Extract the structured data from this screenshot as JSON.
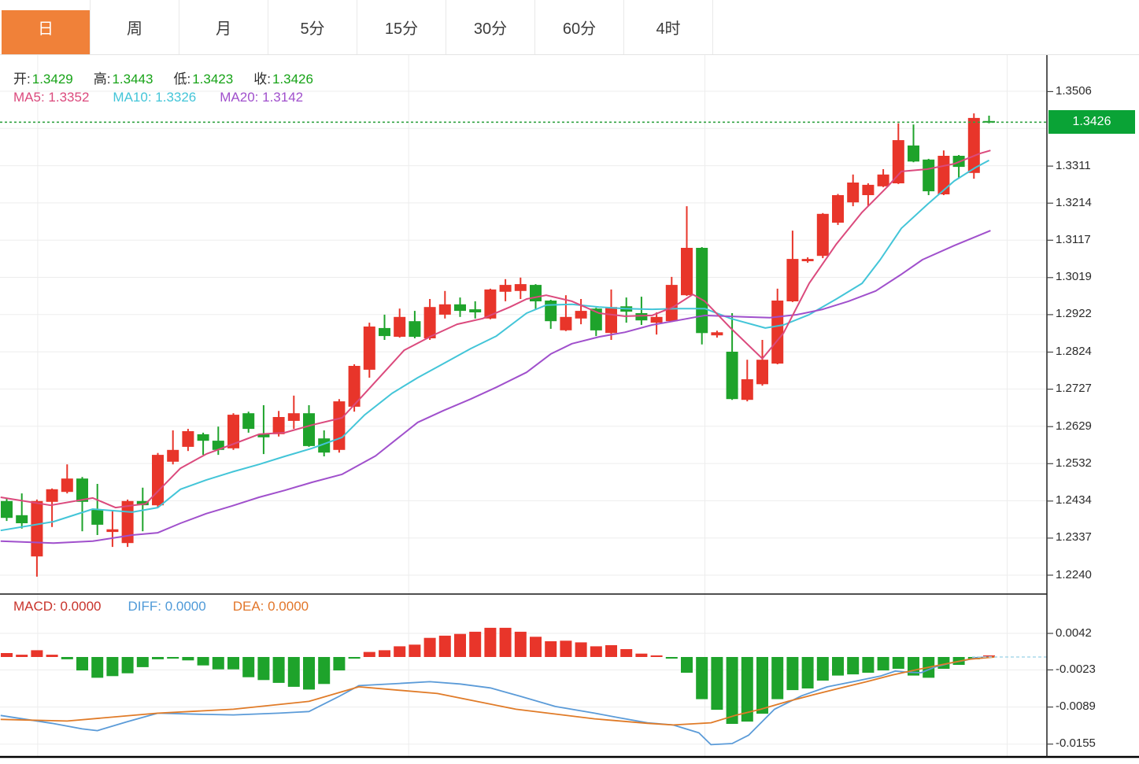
{
  "tabs": {
    "items": [
      {
        "label": "日",
        "active": true
      },
      {
        "label": "周",
        "active": false
      },
      {
        "label": "月",
        "active": false
      },
      {
        "label": "5分",
        "active": false
      },
      {
        "label": "15分",
        "active": false
      },
      {
        "label": "30分",
        "active": false
      },
      {
        "label": "60分",
        "active": false
      },
      {
        "label": "4时",
        "active": false
      }
    ],
    "active_color": "#f08139"
  },
  "quote": {
    "items": [
      {
        "label": "开:",
        "value": "1.3429"
      },
      {
        "label": "高:",
        "value": "1.3443"
      },
      {
        "label": "低:",
        "value": "1.3423"
      },
      {
        "label": "收:",
        "value": "1.3426"
      }
    ],
    "value_color": "#17a317",
    "label_color": "#2d2d2d"
  },
  "ma_legend": {
    "items": [
      {
        "label": "MA5:",
        "value": "1.3352",
        "color": "#db4a7d"
      },
      {
        "label": "MA10:",
        "value": "1.3326",
        "color": "#43c5d8"
      },
      {
        "label": "MA20:",
        "value": "1.3142",
        "color": "#a050cc"
      }
    ]
  },
  "macd_legend": {
    "items": [
      {
        "label": "MACD:",
        "value": "0.0000",
        "color": "#c8332b"
      },
      {
        "label": "DIFF:",
        "value": "0.0000",
        "color": "#4f9ad8"
      },
      {
        "label": "DEA:",
        "value": "0.0000",
        "color": "#e2762a"
      }
    ]
  },
  "price_axis": {
    "ticks": [
      "1.3506",
      "1.3311",
      "1.3214",
      "1.3117",
      "1.3019",
      "1.2922",
      "1.2824",
      "1.2727",
      "1.2629",
      "1.2532",
      "1.2434",
      "1.2337",
      "1.2240"
    ],
    "last_price_tag": {
      "value": "1.3426",
      "color": "#0aa336"
    }
  },
  "macd_axis": {
    "ticks": [
      "0.0042",
      "-0.0023",
      "-0.0089",
      "-0.0155"
    ]
  },
  "chart_data": {
    "type": "candlestick",
    "title": "Daily candlestick chart with MA5/MA10/MA20 and MACD",
    "up_color": "#e8352a",
    "down_color": "#1ea32b",
    "last_price": 1.3426,
    "last_price_line_color": "#33a343",
    "price_range": {
      "min": 1.224,
      "max": 1.3506,
      "grid_step": 0.009746
    },
    "macd_range": {
      "min": -0.0155,
      "max": 0.0042
    },
    "session_breaks_i": [
      2.05,
      26.6,
      46.2,
      66.2
    ],
    "candles": [
      [
        1.2434,
        1.2443,
        1.2382,
        1.239
      ],
      [
        1.2397,
        1.2454,
        1.2362,
        1.2376
      ],
      [
        1.2289,
        1.2438,
        1.2236,
        1.2434
      ],
      [
        1.2432,
        1.2467,
        1.2366,
        1.2465
      ],
      [
        1.2458,
        1.253,
        1.2454,
        1.2493
      ],
      [
        1.2493,
        1.2497,
        1.2355,
        1.2432
      ],
      [
        1.2413,
        1.2479,
        1.2345,
        1.2372
      ],
      [
        1.2353,
        1.2411,
        1.2314,
        1.236
      ],
      [
        1.2324,
        1.2438,
        1.2314,
        1.2434
      ],
      [
        1.2434,
        1.2469,
        1.2355,
        1.2423
      ],
      [
        1.2423,
        1.256,
        1.2417,
        1.2555
      ],
      [
        1.2537,
        1.2619,
        1.253,
        1.2568
      ],
      [
        1.2576,
        1.2623,
        1.2565,
        1.2617
      ],
      [
        1.2609,
        1.2613,
        1.2555,
        1.2592
      ],
      [
        1.2592,
        1.2629,
        1.2555,
        1.2568
      ],
      [
        1.2572,
        1.2664,
        1.2568,
        1.266
      ],
      [
        1.2664,
        1.2668,
        1.2613,
        1.2623
      ],
      [
        1.2609,
        1.2685,
        1.2557,
        1.2601
      ],
      [
        1.2609,
        1.267,
        1.2603,
        1.2654
      ],
      [
        1.2644,
        1.271,
        1.2623,
        1.2664
      ],
      [
        1.2664,
        1.2685,
        1.2576,
        1.2578
      ],
      [
        1.2598,
        1.2619,
        1.2551,
        1.2561
      ],
      [
        1.2568,
        1.2701,
        1.2561,
        1.2695
      ],
      [
        1.2681,
        1.2792,
        1.2668,
        1.2788
      ],
      [
        1.2778,
        1.2901,
        1.2757,
        1.2891
      ],
      [
        1.2887,
        1.2922,
        1.2856,
        1.2866
      ],
      [
        1.2864,
        1.2938,
        1.2862,
        1.2916
      ],
      [
        1.2905,
        1.2932,
        1.286,
        1.2864
      ],
      [
        1.286,
        1.2963,
        1.2856,
        1.2942
      ],
      [
        1.2922,
        1.2984,
        1.2912,
        1.2949
      ],
      [
        1.2949,
        1.2967,
        1.2916,
        1.2932
      ],
      [
        1.2936,
        1.2957,
        1.2912,
        1.2928
      ],
      [
        1.2912,
        1.299,
        1.291,
        1.2988
      ],
      [
        1.2982,
        1.3015,
        1.2957,
        1.3
      ],
      [
        1.2984,
        1.3019,
        1.2963,
        1.3002
      ],
      [
        1.3,
        1.3002,
        1.2936,
        1.2957
      ],
      [
        1.2959,
        1.2961,
        1.2885,
        1.2905
      ],
      [
        1.2881,
        1.2973,
        1.2879,
        1.2916
      ],
      [
        1.2912,
        1.2963,
        1.2897,
        1.2932
      ],
      [
        1.2938,
        1.294,
        1.2866,
        1.2881
      ],
      [
        1.2874,
        1.2988,
        1.2856,
        1.2942
      ],
      [
        1.2944,
        1.2967,
        1.2901,
        1.293
      ],
      [
        1.2926,
        1.2969,
        1.2895,
        1.2907
      ],
      [
        1.2901,
        1.2928,
        1.287,
        1.2916
      ],
      [
        1.2905,
        1.3021,
        1.2903,
        1.3
      ],
      [
        1.2973,
        1.3206,
        1.2971,
        1.3097
      ],
      [
        1.3097,
        1.3099,
        1.2844,
        1.2874
      ],
      [
        1.2868,
        1.288,
        1.2862,
        1.2876
      ],
      [
        1.2825,
        1.2926,
        1.2699,
        1.2701
      ],
      [
        1.2699,
        1.2804,
        1.2695,
        1.2753
      ],
      [
        1.274,
        1.2856,
        1.2736,
        1.2804
      ],
      [
        1.2794,
        1.299,
        1.2792,
        1.2959
      ],
      [
        1.2957,
        1.3142,
        1.2955,
        1.3068
      ],
      [
        1.3062,
        1.3072,
        1.3058,
        1.3068
      ],
      [
        1.3076,
        1.3188,
        1.307,
        1.3186
      ],
      [
        1.3163,
        1.3238,
        1.3157,
        1.3235
      ],
      [
        1.3216,
        1.3289,
        1.3206,
        1.3268
      ],
      [
        1.3235,
        1.3266,
        1.3206,
        1.3262
      ],
      [
        1.3258,
        1.3303,
        1.3256,
        1.3289
      ],
      [
        1.3266,
        1.3423,
        1.3264,
        1.3379
      ],
      [
        1.3365,
        1.342,
        1.3321,
        1.3323
      ],
      [
        1.3328,
        1.333,
        1.3235,
        1.3245
      ],
      [
        1.3237,
        1.3352,
        1.3235,
        1.3338
      ],
      [
        1.3338,
        1.334,
        1.3278,
        1.3309
      ],
      [
        1.3293,
        1.3449,
        1.3278,
        1.3437
      ],
      [
        1.3429,
        1.3443,
        1.3423,
        1.3426
      ]
    ],
    "ma5": [
      [
        -0.4,
        1.2444
      ],
      [
        2.9,
        1.2423
      ],
      [
        5.7,
        1.2442
      ],
      [
        7.2,
        1.2417
      ],
      [
        9.2,
        1.2427
      ],
      [
        11.5,
        1.252
      ],
      [
        13.2,
        1.2557
      ],
      [
        14.9,
        1.2582
      ],
      [
        16.7,
        1.2609
      ],
      [
        18.4,
        1.2613
      ],
      [
        20.2,
        1.2633
      ],
      [
        22.2,
        1.2652
      ],
      [
        23.7,
        1.2716
      ],
      [
        25.5,
        1.2794
      ],
      [
        26.3,
        1.2829
      ],
      [
        28.1,
        1.2866
      ],
      [
        29.8,
        1.2897
      ],
      [
        31.5,
        1.2912
      ],
      [
        33.3,
        1.2942
      ],
      [
        34.4,
        1.2963
      ],
      [
        35.7,
        1.2973
      ],
      [
        37.4,
        1.2957
      ],
      [
        39.2,
        1.2926
      ],
      [
        40.9,
        1.2918
      ],
      [
        42.7,
        1.292
      ],
      [
        44.1,
        1.2942
      ],
      [
        45.4,
        1.2975
      ],
      [
        46.2,
        1.2957
      ],
      [
        47.9,
        1.2887
      ],
      [
        50,
        1.2807
      ],
      [
        51.4,
        1.2874
      ],
      [
        53.1,
        1.3004
      ],
      [
        54.9,
        1.3107
      ],
      [
        56.6,
        1.319
      ],
      [
        58.3,
        1.3258
      ],
      [
        59.2,
        1.3297
      ],
      [
        60.9,
        1.3303
      ],
      [
        62.7,
        1.3317
      ],
      [
        64.4,
        1.3344
      ],
      [
        65.1,
        1.3352
      ]
    ],
    "ma10": [
      [
        -0.4,
        1.2357
      ],
      [
        3.1,
        1.238
      ],
      [
        5.7,
        1.2413
      ],
      [
        8.3,
        1.2405
      ],
      [
        10,
        1.2417
      ],
      [
        11.5,
        1.2465
      ],
      [
        13.2,
        1.2489
      ],
      [
        14.9,
        1.251
      ],
      [
        16.7,
        1.253
      ],
      [
        18.4,
        1.2551
      ],
      [
        20.2,
        1.2572
      ],
      [
        22.2,
        1.2601
      ],
      [
        23.7,
        1.266
      ],
      [
        25.5,
        1.2716
      ],
      [
        27.2,
        1.2757
      ],
      [
        28.9,
        1.2794
      ],
      [
        30.7,
        1.2833
      ],
      [
        32.4,
        1.2866
      ],
      [
        34.4,
        1.2926
      ],
      [
        35.7,
        1.2947
      ],
      [
        37.4,
        1.2949
      ],
      [
        39.2,
        1.2942
      ],
      [
        40.9,
        1.2938
      ],
      [
        42.7,
        1.2936
      ],
      [
        44.4,
        1.2938
      ],
      [
        46.2,
        1.2938
      ],
      [
        47.9,
        1.2912
      ],
      [
        50.2,
        1.2887
      ],
      [
        51.4,
        1.2895
      ],
      [
        53.1,
        1.2922
      ],
      [
        54.9,
        1.2963
      ],
      [
        56.6,
        1.3004
      ],
      [
        57.8,
        1.3066
      ],
      [
        59.2,
        1.3148
      ],
      [
        60.9,
        1.321
      ],
      [
        62.7,
        1.3272
      ],
      [
        64.1,
        1.3307
      ],
      [
        65,
        1.3326
      ]
    ],
    "ma20": [
      [
        -0.4,
        1.2329
      ],
      [
        3.1,
        1.2324
      ],
      [
        5.7,
        1.2329
      ],
      [
        8.3,
        1.2345
      ],
      [
        10,
        1.2351
      ],
      [
        11.5,
        1.2376
      ],
      [
        13.2,
        1.2401
      ],
      [
        14.9,
        1.2421
      ],
      [
        16.7,
        1.2444
      ],
      [
        18.4,
        1.2462
      ],
      [
        20.2,
        1.2483
      ],
      [
        22.2,
        1.2504
      ],
      [
        24.4,
        1.2552
      ],
      [
        27.2,
        1.264
      ],
      [
        28.9,
        1.2671
      ],
      [
        30.7,
        1.2701
      ],
      [
        32.4,
        1.2732
      ],
      [
        34.4,
        1.2771
      ],
      [
        36,
        1.2819
      ],
      [
        37.4,
        1.2846
      ],
      [
        39.2,
        1.2864
      ],
      [
        40.9,
        1.2876
      ],
      [
        42.7,
        1.2895
      ],
      [
        44.4,
        1.2907
      ],
      [
        46.2,
        1.292
      ],
      [
        48.8,
        1.2916
      ],
      [
        50.5,
        1.2914
      ],
      [
        52.3,
        1.2922
      ],
      [
        54,
        1.2936
      ],
      [
        55.7,
        1.2957
      ],
      [
        57.5,
        1.2984
      ],
      [
        59.1,
        1.3025
      ],
      [
        60.6,
        1.3066
      ],
      [
        62.7,
        1.3103
      ],
      [
        65.1,
        1.3142
      ]
    ],
    "macd_hist": [
      0.0007,
      0.0004,
      0.0012,
      0.0004,
      -0.0004,
      -0.0024,
      -0.0037,
      -0.0034,
      -0.0029,
      -0.0018,
      -0.0004,
      -0.0003,
      -0.0006,
      -0.0015,
      -0.0022,
      -0.0022,
      -0.0036,
      -0.0041,
      -0.0046,
      -0.0053,
      -0.0058,
      -0.0048,
      -0.0024,
      -0.0003,
      0.0009,
      0.0012,
      0.0019,
      0.0022,
      0.0034,
      0.0038,
      0.0041,
      0.0045,
      0.0052,
      0.0052,
      0.0045,
      0.0036,
      0.0028,
      0.0029,
      0.0026,
      0.0019,
      0.0021,
      0.0014,
      0.0006,
      0.0001,
      -0.0003,
      -0.0028,
      -0.0075,
      -0.0094,
      -0.0119,
      -0.0115,
      -0.0101,
      -0.0075,
      -0.0059,
      -0.0056,
      -0.0042,
      -0.0033,
      -0.0031,
      -0.0028,
      -0.0024,
      -0.0021,
      -0.0033,
      -0.0037,
      -0.0021,
      -0.0014,
      -0.0004,
      0.0
    ],
    "diff_line": [
      [
        -0.4,
        -0.0104
      ],
      [
        3,
        -0.0118
      ],
      [
        5,
        -0.0128
      ],
      [
        6,
        -0.0131
      ],
      [
        8,
        -0.0115
      ],
      [
        10,
        -0.01
      ],
      [
        13,
        -0.0102
      ],
      [
        15,
        -0.0103
      ],
      [
        18,
        -0.01
      ],
      [
        20,
        -0.0097
      ],
      [
        22,
        -0.007
      ],
      [
        23.3,
        -0.0051
      ],
      [
        26,
        -0.0047
      ],
      [
        28,
        -0.0044
      ],
      [
        30,
        -0.0048
      ],
      [
        32,
        -0.0055
      ],
      [
        34,
        -0.007
      ],
      [
        36.3,
        -0.0088
      ],
      [
        38.9,
        -0.01
      ],
      [
        40.5,
        -0.0108
      ],
      [
        42.4,
        -0.0117
      ],
      [
        44.1,
        -0.0121
      ],
      [
        45.8,
        -0.0135
      ],
      [
        46.6,
        -0.0156
      ],
      [
        48,
        -0.0154
      ],
      [
        49.1,
        -0.0139
      ],
      [
        50.8,
        -0.0093
      ],
      [
        52.6,
        -0.0069
      ],
      [
        54.3,
        -0.0053
      ],
      [
        56,
        -0.0044
      ],
      [
        57.8,
        -0.0034
      ],
      [
        58.8,
        -0.0025
      ],
      [
        59.6,
        -0.0027
      ],
      [
        60.5,
        -0.0028
      ],
      [
        61.4,
        -0.0018
      ],
      [
        62.4,
        -0.0011
      ],
      [
        63.4,
        -0.0006
      ],
      [
        64.2,
        -0.0001
      ],
      [
        65.2,
        0.0
      ]
    ],
    "dea_line": [
      [
        -0.4,
        -0.0111
      ],
      [
        4,
        -0.0114
      ],
      [
        10,
        -0.01
      ],
      [
        15,
        -0.0093
      ],
      [
        20,
        -0.0079
      ],
      [
        23.3,
        -0.0053
      ],
      [
        28.5,
        -0.0065
      ],
      [
        33.7,
        -0.0093
      ],
      [
        38.9,
        -0.011
      ],
      [
        42.4,
        -0.0118
      ],
      [
        44.1,
        -0.0121
      ],
      [
        46.6,
        -0.0117
      ],
      [
        48.2,
        -0.0104
      ],
      [
        49.9,
        -0.0093
      ],
      [
        51.7,
        -0.0079
      ],
      [
        53.4,
        -0.0067
      ],
      [
        55.2,
        -0.0055
      ],
      [
        56.9,
        -0.0044
      ],
      [
        58.6,
        -0.0032
      ],
      [
        60.3,
        -0.0022
      ],
      [
        62,
        -0.0013
      ],
      [
        63.7,
        -0.0004
      ],
      [
        65.4,
        0.0
      ]
    ],
    "line_colors": {
      "ma5": "#db4a7d",
      "ma10": "#43c5d8",
      "ma20": "#a050cc",
      "diff": "#5b9bd8",
      "dea": "#e07b28",
      "diff_zero_dash": "#a8d8ea"
    }
  }
}
